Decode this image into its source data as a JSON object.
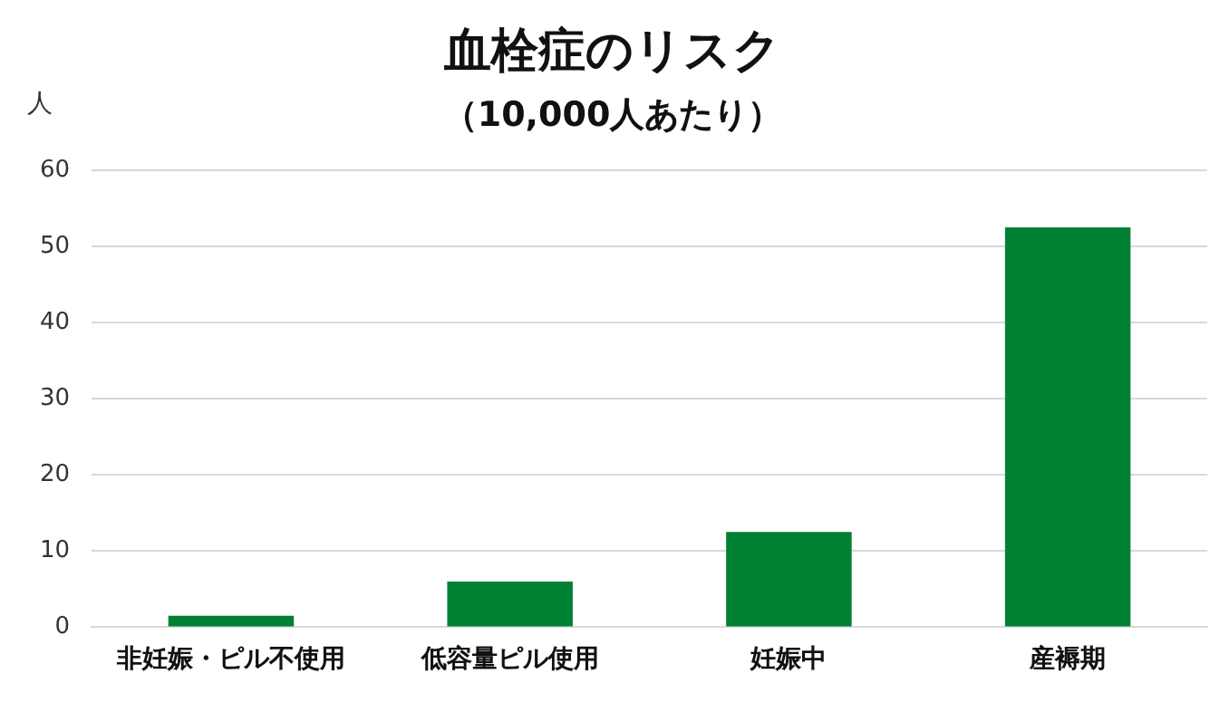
{
  "chart_data": {
    "type": "bar",
    "title": "血栓症のリスク",
    "subtitle": "（10,000人あたり）",
    "ylabel": "人",
    "categories": [
      "非妊娠・ピル不使用",
      "低容量ピル使用",
      "妊娠中",
      "産褥期"
    ],
    "values": [
      1.5,
      6,
      12.5,
      52.5
    ],
    "color": "#008033",
    "ylim": [
      0,
      60
    ],
    "yticks": [
      0,
      10,
      20,
      30,
      40,
      50,
      60
    ],
    "grid": "y"
  }
}
